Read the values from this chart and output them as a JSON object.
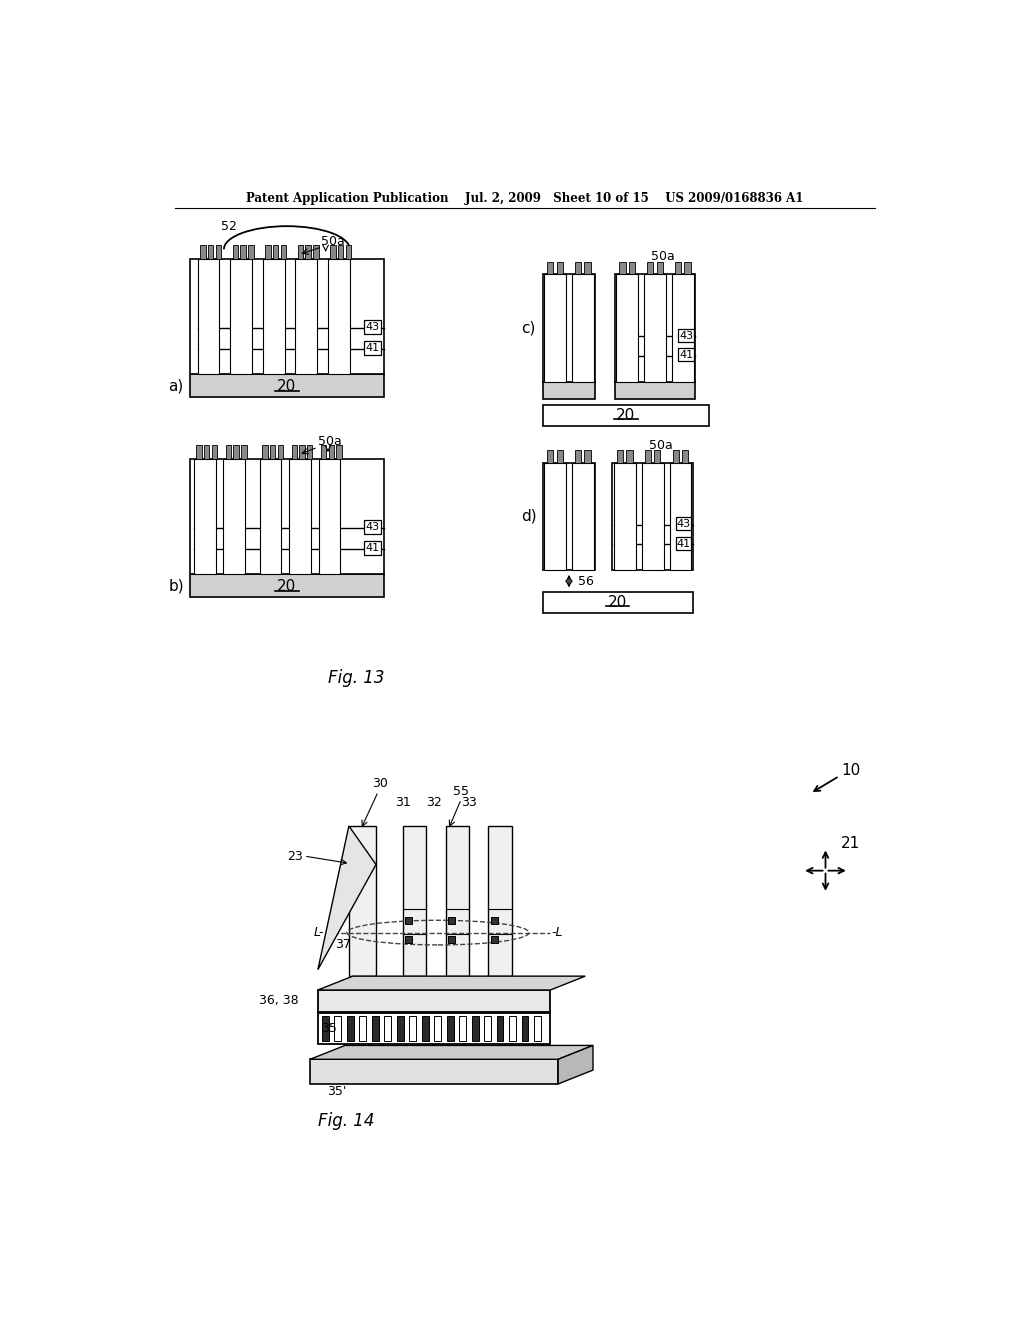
{
  "bg_color": "#ffffff",
  "line_color": "#000000",
  "header_text": "Patent Application Publication    Jul. 2, 2009   Sheet 10 of 15    US 2009/0168836 A1",
  "fig13_label": "Fig. 13",
  "fig14_label": "Fig. 14",
  "page_width": 10.24,
  "page_height": 13.2
}
